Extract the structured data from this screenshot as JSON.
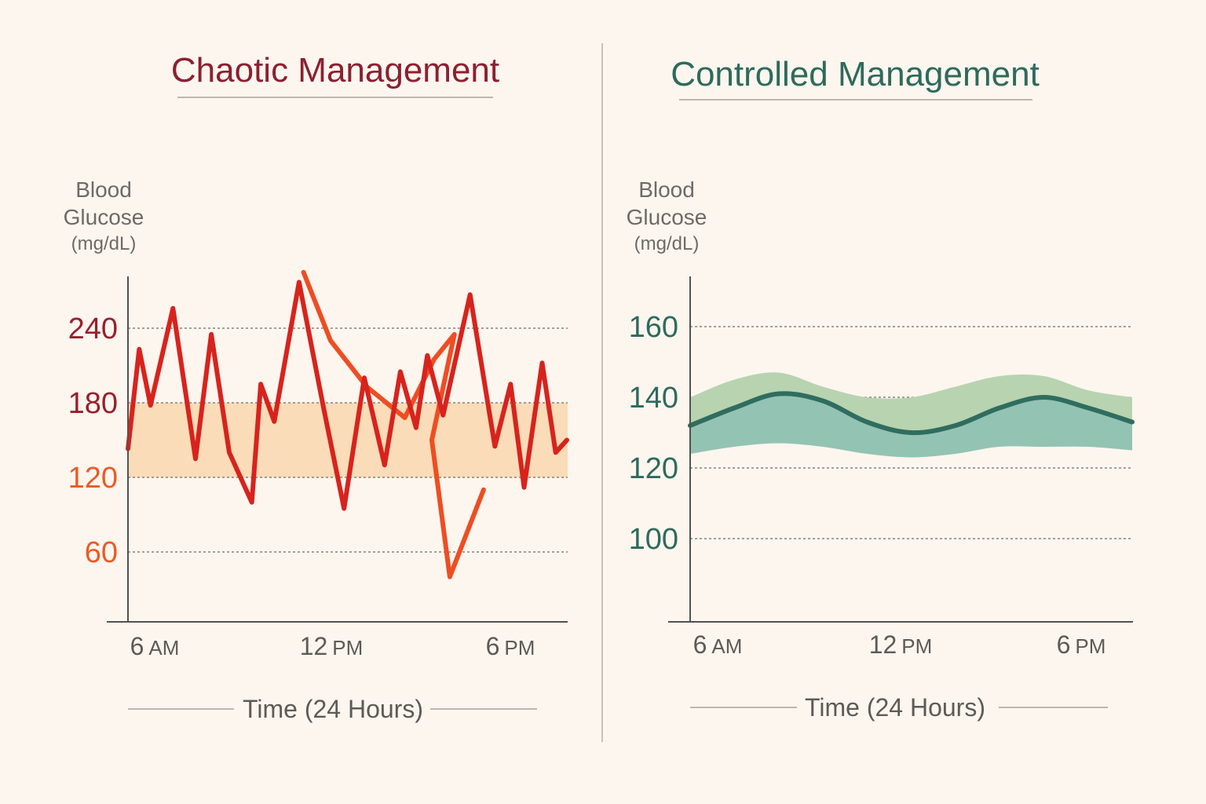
{
  "chart_data": [
    {
      "type": "line",
      "title": "Chaotic Management",
      "ylabel": [
        "Blood",
        "Glucose",
        "(mg/dL)"
      ],
      "xlabel": "Time (24 Hours)",
      "yticks": [
        60,
        120,
        180,
        240
      ],
      "xticks": [
        {
          "num": "6",
          "unit": "AM"
        },
        {
          "num": "12",
          "unit": "PM"
        },
        {
          "num": "6",
          "unit": "PM"
        }
      ],
      "grid": true,
      "target_range": [
        120,
        180
      ],
      "colors": {
        "title": "#8c2030",
        "tick_high": "#9a1f2c",
        "tick_low": "#ec5a24",
        "line_primary": "#d8231d",
        "line_secondary": "#ef4d23",
        "band": "#fbdcb8"
      },
      "series": [
        {
          "values": [
            [
              0,
              143
            ],
            [
              0.5,
              223
            ],
            [
              1,
              178
            ],
            [
              2,
              256
            ],
            [
              3,
              135
            ],
            [
              3.7,
              235
            ],
            [
              4.5,
              140
            ],
            [
              5.5,
              100
            ],
            [
              5.9,
              195
            ],
            [
              6.5,
              165
            ],
            [
              7.6,
              277
            ],
            [
              8.7,
              175
            ],
            [
              9.6,
              95
            ],
            [
              10.5,
              200
            ],
            [
              11.4,
              130
            ],
            [
              12.1,
              205
            ],
            [
              12.8,
              160
            ],
            [
              13.3,
              218
            ],
            [
              14,
              170
            ],
            [
              15.2,
              267
            ],
            [
              16.3,
              145
            ],
            [
              17,
              195
            ],
            [
              17.6,
              112
            ],
            [
              18.4,
              212
            ],
            [
              19,
              140
            ],
            [
              19.5,
              150
            ]
          ]
        },
        {
          "values": [
            [
              7.8,
              285
            ],
            [
              9,
              230
            ],
            [
              10.6,
              193
            ],
            [
              12.3,
              168
            ],
            [
              13.6,
              215
            ],
            [
              14.5,
              235
            ],
            [
              13.5,
              150
            ],
            [
              14.3,
              40
            ],
            [
              15.8,
              110
            ]
          ]
        }
      ]
    },
    {
      "type": "area",
      "title": "Controlled Management",
      "ylabel": [
        "Blood",
        "Glucose",
        "(mg/dL)"
      ],
      "xlabel": "Time (24 Hours)",
      "yticks": [
        100,
        120,
        140,
        160
      ],
      "xticks": [
        {
          "num": "6",
          "unit": "AM"
        },
        {
          "num": "12",
          "unit": "PM"
        },
        {
          "num": "6",
          "unit": "PM"
        }
      ],
      "grid": true,
      "colors": {
        "title": "#2e6a5c",
        "tick": "#2e6a5c",
        "line": "#2f6d5f",
        "band_upper": "#b8d3b0",
        "band_lower": "#93c3b3"
      },
      "series": [
        {
          "x": [
            0,
            2,
            4,
            6,
            8,
            10,
            12,
            14,
            16,
            18,
            20
          ],
          "upper": [
            140,
            145,
            147,
            143,
            140,
            140,
            143,
            146,
            146,
            142,
            140
          ],
          "center": [
            132,
            137,
            141,
            139,
            133,
            130,
            132,
            137,
            140,
            137,
            133
          ],
          "lower": [
            124,
            126,
            127,
            126,
            124,
            123,
            124,
            126,
            126,
            126,
            125
          ]
        }
      ]
    }
  ]
}
